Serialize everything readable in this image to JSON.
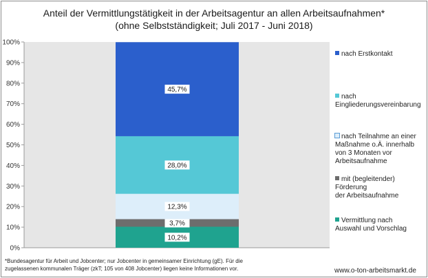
{
  "chart_data": {
    "type": "bar",
    "stacked": true,
    "title": "Anteil der Vermittlungstätigkeit in der Arbeitsagentur an allen Arbeitsaufnahmen*",
    "subtitle": "(ohne Selbstständigkeit; Juli 2017 - Juni 2018)",
    "ylim": [
      0,
      100
    ],
    "yticks": [
      "0%",
      "10%",
      "20%",
      "30%",
      "40%",
      "50%",
      "60%",
      "70%",
      "80%",
      "90%",
      "100%"
    ],
    "grid": false,
    "legend_position": "right",
    "series": [
      {
        "name": "Vermittlung nach Auswahl und Vorschlag",
        "value": 10.2,
        "label": "10,2%",
        "color": "#1fa38f"
      },
      {
        "name": "mit (begleitender) Förderung der Arbeitsaufnahme",
        "value": 3.7,
        "label": "3,7%",
        "color": "#6d6d6d"
      },
      {
        "name": "nach Teilnahme an einer Maßnahme o.Ä. innerhalb von 3 Monaten vor Arbeitsaufnahme",
        "value": 12.3,
        "label": "12,3%",
        "color": "#ddeefa"
      },
      {
        "name": "nach Eingliederungsvereinbarung",
        "value": 28.0,
        "label": "28,0%",
        "color": "#55c8d6"
      },
      {
        "name": "nach Erstkontakt",
        "value": 45.7,
        "label": "45,7%",
        "color": "#2b5fcc"
      }
    ]
  },
  "legend": {
    "items": [
      {
        "lines": [
          "nach Erstkontakt"
        ],
        "color": "#2b5fcc"
      },
      {
        "lines": [
          "nach",
          "Eingliederungsvereinbarung"
        ],
        "color": "#55c8d6"
      },
      {
        "lines": [
          "nach Teilnahme an einer",
          "Maßnahme o.Ä. innerhalb",
          "von 3 Monaten vor",
          "Arbeitsaufnahme"
        ],
        "color": "#ddeefa"
      },
      {
        "lines": [
          "mit (begleitender) Förderung",
          "der Arbeitsaufnahme"
        ],
        "color": "#6d6d6d"
      },
      {
        "lines": [
          "Vermittlung nach",
          "Auswahl und Vorschlag"
        ],
        "color": "#1fa38f"
      }
    ]
  },
  "footnote": {
    "line1": "*Bundesagentur für Arbeit und Jobcenter; nur Jobcenter in gemeinsamer Einrichtung (gE). Für die",
    "line2": "zugelassenen kommunalen Träger (zkT;  105 von  408 Jobcenter) liegen keine Informationen vor."
  },
  "source": "www.o-ton-arbeitsmarkt.de",
  "colors": {
    "plot_background": "#e6e6e6"
  }
}
